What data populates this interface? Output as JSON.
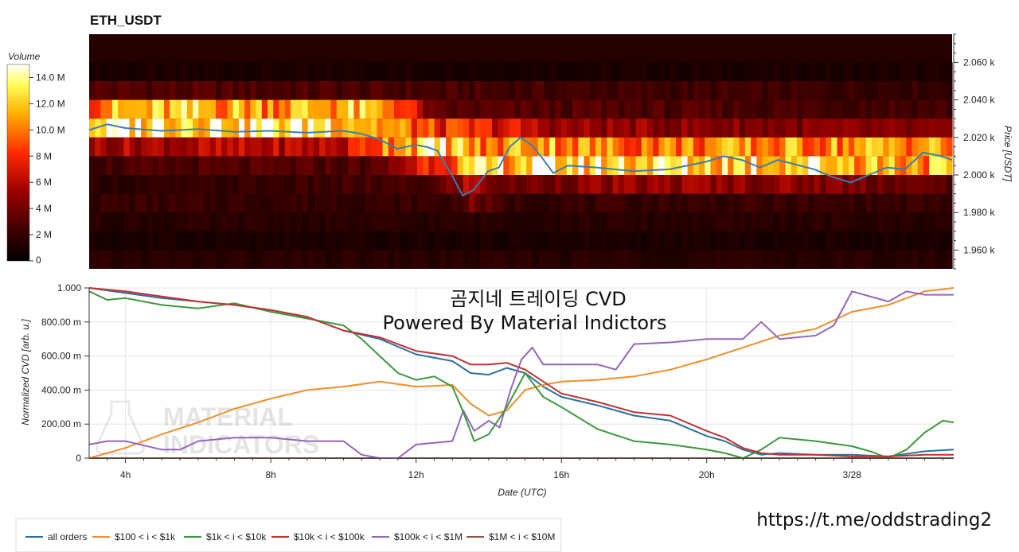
{
  "header": {
    "title": "ETH_USDT",
    "overlay_title": "곰지네 트레이딩 CVD",
    "overlay_subtitle": "Powered By Material Indictors",
    "watermark_line1": "MATERIAL",
    "watermark_line2": "INDICATORS",
    "footer_url": "https://t.me/oddstrading2"
  },
  "chart_data": [
    {
      "type": "heatmap",
      "title": "ETH_USDT",
      "xlabel": "",
      "ylabel": "Price [USDT]",
      "colorbar_label": "Volume",
      "colorbar_ticks": [
        "0",
        "2 M",
        "4 M",
        "6 M",
        "8 M",
        "10.0 M",
        "12.0 M",
        "14.0 M"
      ],
      "colorbar_values": [
        0,
        2,
        4,
        6,
        8,
        10,
        12,
        14
      ],
      "colorbar_range": [
        0,
        15
      ],
      "y_ticks": [
        "1.960 k",
        "1.980 k",
        "2.000 k",
        "2.020 k",
        "2.040 k",
        "2.060 k"
      ],
      "y_tick_values": [
        1960,
        1980,
        2000,
        2020,
        2040,
        2060
      ],
      "ylim": [
        1950,
        2075
      ],
      "xlim": [
        3.0,
        26.8
      ],
      "price_bands": [
        {
          "low": 2050,
          "high": 2060,
          "levels": [
            [
              3.0,
              1.0
            ]
          ]
        },
        {
          "low": 2040,
          "high": 2050,
          "levels": [
            [
              3.0,
              3.0
            ],
            [
              13.5,
              2.5
            ],
            [
              26.8,
              2.0
            ]
          ]
        },
        {
          "low": 2030,
          "high": 2040,
          "levels": [
            [
              3.0,
              10.5
            ],
            [
              6.0,
              11.5
            ],
            [
              8.0,
              11.0
            ],
            [
              10.0,
              11.5
            ],
            [
              11.5,
              10.0
            ],
            [
              12.5,
              3.0
            ],
            [
              26.8,
              2.5
            ]
          ]
        },
        {
          "low": 2020,
          "high": 2030,
          "levels": [
            [
              3.0,
              13.5
            ],
            [
              6.0,
              14.0
            ],
            [
              8.0,
              13.5
            ],
            [
              10.0,
              13.5
            ],
            [
              11.0,
              11.0
            ],
            [
              12.5,
              8.0
            ],
            [
              14.5,
              7.0
            ],
            [
              16.0,
              5.0
            ],
            [
              26.8,
              4.0
            ]
          ]
        },
        {
          "low": 2010,
          "high": 2020,
          "levels": [
            [
              3.0,
              5.5
            ],
            [
              10.0,
              6.0
            ],
            [
              11.5,
              12.0
            ],
            [
              13.0,
              12.5
            ],
            [
              14.0,
              9.0
            ],
            [
              15.0,
              12.0
            ],
            [
              17.0,
              10.0
            ],
            [
              20.0,
              10.0
            ],
            [
              23.0,
              10.5
            ],
            [
              26.0,
              11.0
            ],
            [
              26.8,
              10.0
            ]
          ]
        },
        {
          "low": 2000,
          "high": 2010,
          "levels": [
            [
              3.0,
              2.5
            ],
            [
              11.0,
              3.0
            ],
            [
              12.5,
              9.0
            ],
            [
              13.5,
              11.0
            ],
            [
              15.0,
              13.0
            ],
            [
              17.0,
              13.0
            ],
            [
              20.0,
              12.5
            ],
            [
              23.0,
              13.0
            ],
            [
              25.0,
              11.5
            ],
            [
              26.8,
              11.0
            ]
          ]
        },
        {
          "low": 1990,
          "high": 2000,
          "levels": [
            [
              3.0,
              1.5
            ],
            [
              12.5,
              2.5
            ],
            [
              13.5,
              6.0
            ],
            [
              14.5,
              3.5
            ],
            [
              16.0,
              4.5
            ],
            [
              20.0,
              5.0
            ],
            [
              24.0,
              4.5
            ],
            [
              26.8,
              3.0
            ]
          ]
        },
        {
          "low": 1980,
          "high": 1990,
          "levels": [
            [
              3.0,
              2.0
            ],
            [
              13.0,
              2.0
            ],
            [
              13.5,
              4.0
            ],
            [
              14.5,
              2.0
            ],
            [
              26.8,
              2.0
            ]
          ]
        },
        {
          "low": 1970,
          "high": 1980,
          "levels": [
            [
              3.0,
              1.5
            ],
            [
              26.8,
              1.5
            ]
          ]
        },
        {
          "low": 1960,
          "high": 1970,
          "levels": [
            [
              3.0,
              1.0
            ],
            [
              26.8,
              1.0
            ]
          ]
        },
        {
          "low": 1950,
          "high": 1960,
          "levels": [
            [
              3.0,
              1.5
            ],
            [
              26.8,
              1.5
            ]
          ]
        }
      ],
      "price_line": {
        "color": "#3b7dae",
        "x": [
          3.0,
          3.5,
          4.0,
          5.0,
          6.0,
          7.0,
          8.0,
          9.0,
          10.0,
          10.5,
          11.0,
          11.5,
          12.0,
          12.3,
          12.6,
          13.0,
          13.3,
          13.6,
          14.0,
          14.3,
          14.6,
          14.9,
          15.2,
          15.5,
          15.8,
          16.2,
          17.0,
          18.0,
          19.0,
          20.0,
          20.5,
          21.0,
          21.5,
          22.0,
          23.0,
          23.5,
          24.0,
          24.5,
          25.0,
          25.5,
          26.0,
          26.5,
          26.8
        ],
        "y": [
          2024.0,
          2027.0,
          2025.0,
          2023.5,
          2024.5,
          2023.0,
          2023.5,
          2022.5,
          2023.5,
          2022.0,
          2019.0,
          2014.0,
          2016.0,
          2015.0,
          2013.0,
          2000.0,
          1989.0,
          1992.0,
          2002.0,
          2004.0,
          2015.0,
          2020.0,
          2016.0,
          2009.0,
          2001.0,
          2005.0,
          2004.0,
          2002.0,
          2003.0,
          2007.0,
          2010.0,
          2008.0,
          2004.0,
          2008.0,
          2003.0,
          1999.0,
          1996.0,
          2000.0,
          2004.0,
          2003.0,
          2012.0,
          2010.0,
          2008.0
        ]
      }
    },
    {
      "type": "line",
      "title": "",
      "xlabel": "Date (UTC)",
      "ylabel": "Normalized CVD [arb. u.]",
      "ylim": [
        0,
        1.0
      ],
      "xlim": [
        3.0,
        26.8
      ],
      "y_ticks": [
        "0",
        "200.00 m",
        "400.00 m",
        "600.00 m",
        "800.00 m",
        "1.000"
      ],
      "y_tick_values": [
        0,
        0.2,
        0.4,
        0.6,
        0.8,
        1.0
      ],
      "x_ticks": [
        "4h",
        "8h",
        "12h",
        "16h",
        "20h",
        "3/28"
      ],
      "x_tick_values": [
        4,
        8,
        12,
        16,
        20,
        24
      ],
      "grid": true,
      "legend_position": "bottom-left",
      "series": [
        {
          "name": "all orders",
          "color": "#2f6f9f",
          "x": [
            3.0,
            4.0,
            5.0,
            6.0,
            7.0,
            8.0,
            9.0,
            10.0,
            11.0,
            12.0,
            13.0,
            13.5,
            14.0,
            14.5,
            15.0,
            15.5,
            16.0,
            17.0,
            18.0,
            19.0,
            20.0,
            20.5,
            21.0,
            21.5,
            22.0,
            23.0,
            24.0,
            25.0,
            26.0,
            26.8
          ],
          "y": [
            1.0,
            0.97,
            0.94,
            0.92,
            0.9,
            0.87,
            0.83,
            0.75,
            0.7,
            0.61,
            0.57,
            0.5,
            0.49,
            0.53,
            0.5,
            0.42,
            0.36,
            0.31,
            0.25,
            0.22,
            0.13,
            0.1,
            0.05,
            0.02,
            0.03,
            0.02,
            0.02,
            0.01,
            0.04,
            0.05
          ]
        },
        {
          "name": "$100 < i < $1k",
          "color": "#f28e2b",
          "x": [
            3.0,
            4.0,
            5.0,
            6.0,
            7.0,
            8.0,
            9.0,
            10.0,
            11.0,
            12.0,
            13.0,
            13.5,
            14.0,
            14.5,
            15.0,
            15.5,
            16.0,
            17.0,
            18.0,
            19.0,
            20.0,
            21.0,
            22.0,
            23.0,
            24.0,
            25.0,
            26.0,
            26.8
          ],
          "y": [
            0.0,
            0.06,
            0.14,
            0.21,
            0.29,
            0.35,
            0.4,
            0.42,
            0.45,
            0.42,
            0.43,
            0.32,
            0.25,
            0.28,
            0.4,
            0.43,
            0.45,
            0.46,
            0.48,
            0.52,
            0.58,
            0.65,
            0.72,
            0.76,
            0.86,
            0.9,
            0.98,
            1.0
          ]
        },
        {
          "name": "$1k < i < $10k",
          "color": "#3a9a3a",
          "x": [
            3.0,
            3.5,
            4.0,
            5.0,
            6.0,
            7.0,
            8.0,
            9.0,
            10.0,
            10.5,
            11.0,
            11.5,
            12.0,
            12.5,
            13.0,
            13.3,
            13.6,
            14.0,
            14.5,
            15.0,
            15.5,
            16.0,
            17.0,
            18.0,
            19.0,
            20.0,
            20.5,
            21.0,
            21.5,
            22.0,
            23.0,
            24.0,
            24.5,
            25.0,
            25.5,
            26.0,
            26.5,
            26.8
          ],
          "y": [
            0.98,
            0.93,
            0.94,
            0.9,
            0.88,
            0.91,
            0.86,
            0.82,
            0.78,
            0.7,
            0.6,
            0.5,
            0.46,
            0.48,
            0.42,
            0.27,
            0.1,
            0.14,
            0.3,
            0.5,
            0.36,
            0.3,
            0.17,
            0.1,
            0.08,
            0.05,
            0.03,
            0.0,
            0.05,
            0.12,
            0.1,
            0.07,
            0.04,
            0.0,
            0.05,
            0.15,
            0.22,
            0.21
          ]
        },
        {
          "name": "$10k < i < $100k",
          "color": "#c03232",
          "x": [
            3.0,
            4.0,
            5.0,
            6.0,
            7.0,
            8.0,
            9.0,
            10.0,
            11.0,
            12.0,
            13.0,
            13.5,
            14.0,
            14.5,
            15.0,
            15.5,
            16.0,
            17.0,
            18.0,
            19.0,
            20.0,
            20.5,
            21.0,
            21.5,
            22.0,
            23.0,
            24.0,
            25.0,
            26.0,
            26.8
          ],
          "y": [
            1.0,
            0.98,
            0.95,
            0.92,
            0.9,
            0.87,
            0.83,
            0.75,
            0.71,
            0.63,
            0.6,
            0.55,
            0.55,
            0.56,
            0.52,
            0.45,
            0.38,
            0.33,
            0.27,
            0.25,
            0.16,
            0.12,
            0.06,
            0.03,
            0.02,
            0.02,
            0.01,
            0.01,
            0.02,
            0.02
          ]
        },
        {
          "name": "$100k < i < $1M",
          "color": "#9467bd",
          "x": [
            3.0,
            3.5,
            4.0,
            5.0,
            5.5,
            6.0,
            7.0,
            8.0,
            9.0,
            10.0,
            10.5,
            11.0,
            11.5,
            12.0,
            13.0,
            13.3,
            13.6,
            14.0,
            14.3,
            14.6,
            14.9,
            15.2,
            15.5,
            16.0,
            17.0,
            17.5,
            18.0,
            19.0,
            20.0,
            21.0,
            21.5,
            22.0,
            23.0,
            23.5,
            24.0,
            25.0,
            25.5,
            26.0,
            26.8
          ],
          "y": [
            0.08,
            0.1,
            0.1,
            0.05,
            0.05,
            0.1,
            0.12,
            0.12,
            0.1,
            0.1,
            0.02,
            0.0,
            0.0,
            0.08,
            0.1,
            0.28,
            0.16,
            0.22,
            0.18,
            0.4,
            0.58,
            0.65,
            0.55,
            0.55,
            0.55,
            0.52,
            0.67,
            0.68,
            0.7,
            0.7,
            0.8,
            0.7,
            0.72,
            0.78,
            0.98,
            0.92,
            0.98,
            0.96,
            0.96
          ]
        },
        {
          "name": "$1M < i < $10M",
          "color": "#8c564b",
          "x": [
            3.0,
            26.8
          ],
          "y": [
            0.0,
            0.0
          ]
        }
      ]
    }
  ]
}
